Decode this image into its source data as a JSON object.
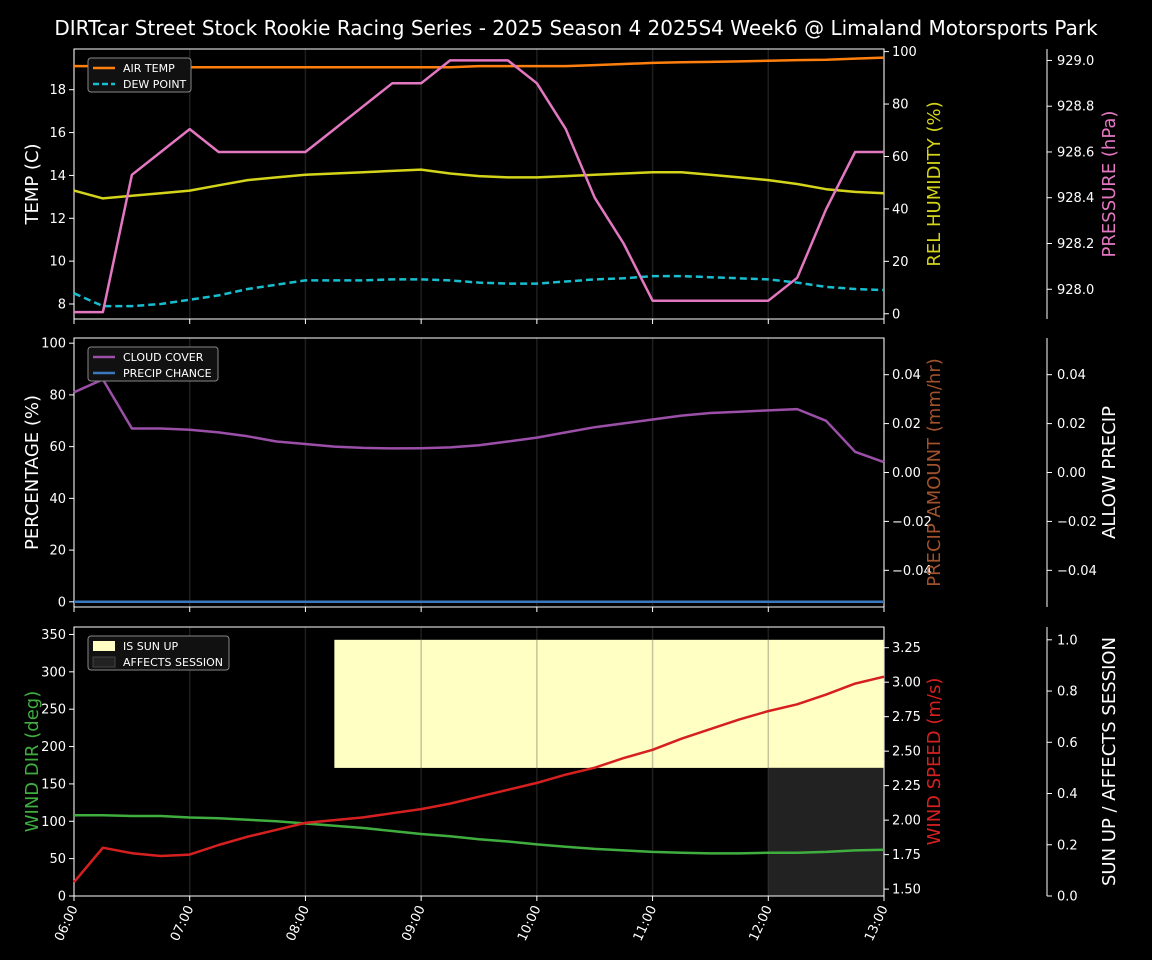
{
  "title": "DIRTcar Street Stock Rookie Racing Series - 2025 Season 4 2025S4 Week6 @ Limaland Motorsports Park",
  "colors": {
    "background": "#000000",
    "axis": "#ffffff",
    "air_temp": "#ff7f0e",
    "dew_point": "#17becf",
    "humidity": "#d4d41a",
    "pressure": "#e377c2",
    "cloud_cover": "#9b4fa8",
    "precip_chance": "#3a78c0",
    "precip_amount": "#a0522d",
    "wind_dir": "#3fae3f",
    "wind_speed": "#d62020",
    "sun_up": "#ffffc4",
    "affects_session": "#222222"
  },
  "chart_data": [
    {
      "type": "line",
      "panel": "temperature",
      "x_ticks": [
        "06:00",
        "07:00",
        "08:00",
        "09:00",
        "10:00",
        "11:00",
        "12:00",
        "13:00"
      ],
      "x_range": [
        "06:00",
        "13:00"
      ],
      "x": [
        "06:00",
        "06:15",
        "06:30",
        "06:45",
        "07:00",
        "07:15",
        "07:30",
        "07:45",
        "08:00",
        "08:15",
        "08:30",
        "08:45",
        "09:00",
        "09:15",
        "09:30",
        "09:45",
        "10:00",
        "10:15",
        "10:30",
        "10:45",
        "11:00",
        "11:15",
        "11:30",
        "11:45",
        "12:00",
        "12:15",
        "12:30",
        "12:45",
        "13:00"
      ],
      "axes": {
        "left": {
          "label": "TEMP (C)",
          "ylim": [
            7.3,
            19.9
          ],
          "ticks": [
            8,
            10,
            12,
            14,
            16,
            18
          ]
        },
        "right": {
          "label": "REL HUMIDITY (%)",
          "ylim": [
            -2,
            101
          ],
          "ticks": [
            0,
            20,
            40,
            60,
            80,
            100
          ]
        },
        "far_right": {
          "label": "PRESSURE (hPa)",
          "ylim": [
            927.87,
            929.05
          ],
          "ticks": [
            "928.0",
            "928.2",
            "928.4",
            "928.6",
            "928.8",
            "929.0"
          ]
        }
      },
      "legend": {
        "placement": "top-left",
        "entries": [
          "AIR TEMP",
          "DEW POINT"
        ]
      },
      "series": [
        {
          "name": "AIR TEMP",
          "axis": "left",
          "style": "solid",
          "values": [
            19.1,
            19.1,
            19.1,
            19.1,
            19.05,
            19.05,
            19.05,
            19.05,
            19.05,
            19.05,
            19.05,
            19.05,
            19.05,
            19.05,
            19.1,
            19.1,
            19.1,
            19.1,
            19.15,
            19.2,
            19.25,
            19.28,
            19.3,
            19.32,
            19.35,
            19.38,
            19.4,
            19.45,
            19.5
          ]
        },
        {
          "name": "DEW POINT",
          "axis": "left",
          "style": "dashed",
          "values": [
            8.5,
            7.9,
            7.9,
            8.0,
            8.2,
            8.4,
            8.7,
            8.9,
            9.1,
            9.1,
            9.1,
            9.15,
            9.15,
            9.1,
            9.0,
            8.95,
            8.95,
            9.05,
            9.15,
            9.2,
            9.3,
            9.3,
            9.25,
            9.2,
            9.15,
            9.0,
            8.8,
            8.7,
            8.65
          ]
        },
        {
          "axis": "right",
          "style": "solid",
          "values": [
            47,
            44,
            45,
            46,
            47,
            49,
            51,
            52,
            53,
            53.5,
            54,
            54.5,
            55,
            53.5,
            52.5,
            52,
            52,
            52.5,
            53,
            53.5,
            54,
            54,
            53,
            52,
            51,
            49.5,
            47.5,
            46.5,
            46
          ]
        },
        {
          "axis": "far_right",
          "style": "solid",
          "values": [
            927.9,
            927.9,
            928.5,
            928.6,
            928.7,
            928.6,
            928.6,
            928.6,
            928.6,
            928.7,
            928.8,
            928.9,
            928.9,
            929.0,
            929.0,
            929.0,
            928.9,
            928.7,
            928.4,
            928.2,
            927.95,
            927.95,
            927.95,
            927.95,
            927.95,
            928.05,
            928.35,
            928.6,
            928.6
          ]
        }
      ]
    },
    {
      "type": "line",
      "panel": "clouds_precip",
      "axes": {
        "left": {
          "label": "PERCENTAGE (%)",
          "ylim": [
            -2,
            102
          ],
          "ticks": [
            0,
            20,
            40,
            60,
            80,
            100
          ]
        },
        "right": {
          "label": "PRECIP AMOUNT (mm/hr)",
          "ylim": [
            -0.055,
            0.055
          ],
          "ticks": [
            "−0.04",
            "−0.02",
            "0.00",
            "0.02",
            "0.04"
          ]
        },
        "far_right": {
          "label": "ALLOW PRECIP",
          "ylim": [
            -0.055,
            0.055
          ],
          "ticks": [
            "−0.04",
            "−0.02",
            "0.00",
            "0.02",
            "0.04"
          ]
        }
      },
      "legend": {
        "placement": "top-left",
        "entries": [
          "CLOUD COVER",
          "PRECIP CHANCE"
        ]
      },
      "series": [
        {
          "name": "CLOUD COVER",
          "axis": "left",
          "values": [
            81,
            86,
            67,
            67,
            66.5,
            65.5,
            64,
            62,
            61,
            60,
            59.5,
            59.3,
            59.4,
            59.7,
            60.5,
            62,
            63.5,
            65.5,
            67.5,
            69,
            70.5,
            72,
            73,
            73.5,
            74,
            74.5,
            70,
            58,
            54
          ]
        },
        {
          "name": "PRECIP CHANCE",
          "axis": "left",
          "values": [
            0,
            0,
            0,
            0,
            0,
            0,
            0,
            0,
            0,
            0,
            0,
            0,
            0,
            0,
            0,
            0,
            0,
            0,
            0,
            0,
            0,
            0,
            0,
            0,
            0,
            0,
            0,
            0,
            0
          ]
        }
      ]
    },
    {
      "type": "line",
      "panel": "wind_sun",
      "axes": {
        "left": {
          "label": "WIND DIR (deg)",
          "ylim": [
            0,
            360
          ],
          "ticks": [
            0,
            50,
            100,
            150,
            200,
            250,
            300,
            350
          ]
        },
        "right": {
          "label": "WIND SPEED (m/s)",
          "ylim": [
            1.45,
            3.4
          ],
          "ticks": [
            "1.50",
            "1.75",
            "2.00",
            "2.25",
            "2.50",
            "2.75",
            "3.00",
            "3.25"
          ]
        },
        "far_right": {
          "label": "SUN UP / AFFECTS SESSION",
          "ylim": [
            0,
            1.05
          ],
          "ticks": [
            "0.0",
            "0.2",
            "0.4",
            "0.6",
            "0.8",
            "1.0"
          ]
        }
      },
      "legend": {
        "placement": "top-left",
        "entries": [
          "IS SUN UP",
          "AFFECTS SESSION"
        ]
      },
      "bands": [
        {
          "name": "IS SUN UP",
          "x_start": "08:15",
          "x_end": "13:00",
          "y_start": 0.5,
          "y_end": 1.0
        },
        {
          "name": "AFFECTS SESSION",
          "x_start": "12:00",
          "x_end": "13:00",
          "y_start": 0.0,
          "y_end": 0.5
        }
      ],
      "series": [
        {
          "axis": "left",
          "values": [
            108,
            108,
            107,
            107,
            105,
            104,
            102,
            100,
            97,
            94,
            91,
            87,
            83,
            80,
            76,
            73,
            69,
            66,
            63,
            61,
            59,
            58,
            57,
            57,
            58,
            58,
            59,
            61,
            62
          ]
        },
        {
          "axis": "right",
          "values": [
            1.55,
            1.8,
            1.76,
            1.74,
            1.75,
            1.82,
            1.88,
            1.93,
            1.98,
            2.0,
            2.02,
            2.05,
            2.08,
            2.12,
            2.17,
            2.22,
            2.27,
            2.33,
            2.38,
            2.45,
            2.51,
            2.59,
            2.66,
            2.73,
            2.79,
            2.84,
            2.91,
            2.99,
            3.04
          ]
        }
      ]
    }
  ]
}
